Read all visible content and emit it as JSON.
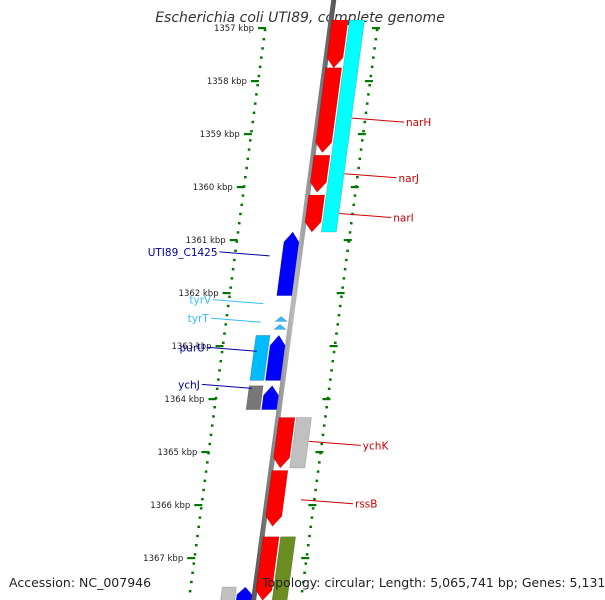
{
  "title": "Escherichia coli UTI89, complete genome",
  "ticks": [
    {
      "kbp": 1357,
      "label": "1357 kbp"
    },
    {
      "kbp": 1358,
      "label": "1358 kbp"
    },
    {
      "kbp": 1359,
      "label": "1359 kbp"
    },
    {
      "kbp": 1360,
      "label": "1360 kbp"
    },
    {
      "kbp": 1361,
      "label": "1361 kbp"
    },
    {
      "kbp": 1362,
      "label": "1362 kbp"
    },
    {
      "kbp": 1363,
      "label": "1363 kbp"
    },
    {
      "kbp": 1364,
      "label": "1364 kbp"
    },
    {
      "kbp": 1365,
      "label": "1365 kbp"
    },
    {
      "kbp": 1366,
      "label": "1366 kbp"
    },
    {
      "kbp": 1367,
      "label": "1367 kbp"
    }
  ],
  "features": [
    {
      "name": "narH-cds-a",
      "track": 1,
      "start": 1356.85,
      "end": 1357.75,
      "strand": "+",
      "color": "#ff0000"
    },
    {
      "name": "narH-cds-b",
      "track": 1,
      "start": 1357.75,
      "end": 1359.35,
      "strand": "+",
      "color": "#ff0000"
    },
    {
      "name": "narJ-cds",
      "track": 1,
      "start": 1359.4,
      "end": 1360.1,
      "strand": "+",
      "color": "#ff0000"
    },
    {
      "name": "narI-cds",
      "track": 1,
      "start": 1360.15,
      "end": 1360.85,
      "strand": "+",
      "color": "#ff0000"
    },
    {
      "name": "narGHJI-operon",
      "track": 2,
      "start": 1356.85,
      "end": 1360.85,
      "strand": "none",
      "color": "#00ffff"
    },
    {
      "name": "UTI89_C1425-cds",
      "track": -1,
      "start": 1360.85,
      "end": 1362.05,
      "strand": "-",
      "color": "#0000ff"
    },
    {
      "name": "tyrV-trna",
      "track": -1,
      "start": 1362.45,
      "end": 1362.55,
      "strand": "-",
      "color": "#33bbff",
      "small": true
    },
    {
      "name": "tyrT-trna",
      "track": -1,
      "start": 1362.6,
      "end": 1362.7,
      "strand": "-",
      "color": "#33bbff",
      "small": true
    },
    {
      "name": "purU-cds",
      "track": -1,
      "start": 1362.8,
      "end": 1363.65,
      "strand": "-",
      "color": "#0000ff"
    },
    {
      "name": "purU-operon",
      "track": -2,
      "start": 1362.8,
      "end": 1363.65,
      "strand": "none",
      "color": "#00bbff"
    },
    {
      "name": "ychJ-cds",
      "track": -1,
      "start": 1363.75,
      "end": 1364.2,
      "strand": "-",
      "color": "#0000ff"
    },
    {
      "name": "ychJ-grey",
      "track": -2,
      "start": 1363.75,
      "end": 1364.2,
      "strand": "none",
      "color": "#777777"
    },
    {
      "name": "ychK-cds",
      "track": 1,
      "start": 1364.35,
      "end": 1365.3,
      "strand": "+",
      "color": "#ff0000"
    },
    {
      "name": "ychK-grey",
      "track": 2,
      "start": 1364.35,
      "end": 1365.3,
      "strand": "none",
      "color": "#c0c0c0"
    },
    {
      "name": "rssB-cds",
      "track": 1,
      "start": 1365.35,
      "end": 1366.4,
      "strand": "+",
      "color": "#ff0000"
    },
    {
      "name": "next-cds-red",
      "track": 1,
      "start": 1366.6,
      "end": 1367.8,
      "strand": "+",
      "color": "#ff0000"
    },
    {
      "name": "next-olive",
      "track": 2,
      "start": 1366.6,
      "end": 1367.8,
      "strand": "none",
      "color": "#6b8e23"
    },
    {
      "name": "bottom-blue",
      "track": -1,
      "start": 1367.55,
      "end": 1367.9,
      "strand": "-",
      "color": "#0000ff"
    },
    {
      "name": "bottom-grey",
      "track": -2,
      "start": 1367.55,
      "end": 1367.9,
      "strand": "none",
      "color": "#c0c0c0"
    }
  ],
  "labels": [
    {
      "text": "narH",
      "side": "right",
      "kbp": 1358.7,
      "color": "#cc0000"
    },
    {
      "text": "narJ",
      "side": "right",
      "kbp": 1359.75,
      "color": "#cc0000"
    },
    {
      "text": "narI",
      "side": "right",
      "kbp": 1360.5,
      "color": "#cc0000"
    },
    {
      "text": "UTI89_C1425",
      "side": "left",
      "kbp": 1361.3,
      "color": "#000099"
    },
    {
      "text": "tyrV",
      "side": "left",
      "kbp": 1362.2,
      "color": "#33bbff"
    },
    {
      "text": "tyrT",
      "side": "left",
      "kbp": 1362.55,
      "color": "#33bbff"
    },
    {
      "text": "purU",
      "side": "left",
      "kbp": 1363.1,
      "color": "#000099"
    },
    {
      "text": "ychJ",
      "side": "left",
      "kbp": 1363.8,
      "color": "#000099"
    },
    {
      "text": "ychK",
      "side": "right",
      "kbp": 1364.8,
      "color": "#cc0000"
    },
    {
      "text": "rssB",
      "side": "right",
      "kbp": 1365.9,
      "color": "#cc0000"
    }
  ],
  "footer": {
    "accession": "Accession: NC_007946",
    "topology": "Topology: circular; Length: 5,065,741 bp; Genes: 5,131"
  }
}
